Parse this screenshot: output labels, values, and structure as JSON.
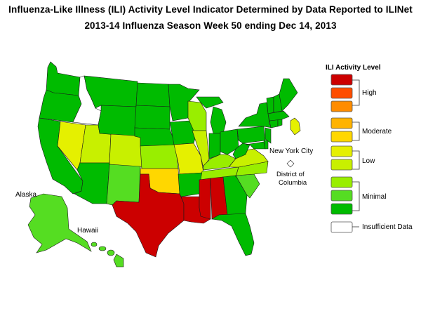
{
  "title_line1": "Influenza-Like Illness (ILI) Activity Level Indicator Determined by Data Reported to ILINet",
  "title_line2": "2013-14  Influenza Season Week  50 ending Dec 14, 2013",
  "legend": {
    "title": "ILI Activity Level",
    "levels": [
      {
        "level": 10,
        "color": "#cc0000"
      },
      {
        "level": 9,
        "color": "#ff4d00"
      },
      {
        "level": 8,
        "color": "#ff8c00"
      },
      {
        "level": 7,
        "color": "#ffb300"
      },
      {
        "level": 6,
        "color": "#ffd700"
      },
      {
        "level": 5,
        "color": "#e5f000"
      },
      {
        "level": 4,
        "color": "#c8f000"
      },
      {
        "level": 3,
        "color": "#99ee00"
      },
      {
        "level": 2,
        "color": "#55dd22"
      },
      {
        "level": 1,
        "color": "#00bb00"
      },
      {
        "level": 0,
        "color": "#ffffff"
      }
    ],
    "groups": [
      {
        "label": "High"
      },
      {
        "label": "Moderate"
      },
      {
        "label": "Low"
      },
      {
        "label": "Minimal"
      },
      {
        "label": "Insufficient Data"
      }
    ]
  },
  "map_labels": {
    "alaska": "Alaska",
    "hawaii": "Hawaii",
    "nyc": "New York City",
    "dc_line1": "District of",
    "dc_line2": "Columbia"
  },
  "states": {
    "WA": 1,
    "OR": 1,
    "CA": 1,
    "ID": 0,
    "NV": 5,
    "UT": 4,
    "AZ": 1,
    "MT": 1,
    "WY": 1,
    "CO": 4,
    "NM": 2,
    "ND": 1,
    "SD": 1,
    "NE": 1,
    "KS": 3,
    "OK": 6,
    "TX": 10,
    "MN": 1,
    "IA": 1,
    "MO": 5,
    "AR": 1,
    "LA": 10,
    "WI": 3,
    "IL": 4,
    "MS": 10,
    "AL": 10,
    "MI": 1,
    "IN": 1,
    "OH": 1,
    "KY": 3,
    "TN": 3,
    "GA": 1,
    "FL": 1,
    "SC": 2,
    "NC": 3,
    "VA": 4,
    "WV": 1,
    "PA": 1,
    "NY": 1,
    "VT": 1,
    "NH": 1,
    "ME": 1,
    "MA": 1,
    "RI": 1,
    "CT": 1,
    "NJ": 1,
    "DE": 1,
    "MD": 1,
    "DC": 0,
    "NYC": 5,
    "AK": 2,
    "HI": 2
  }
}
